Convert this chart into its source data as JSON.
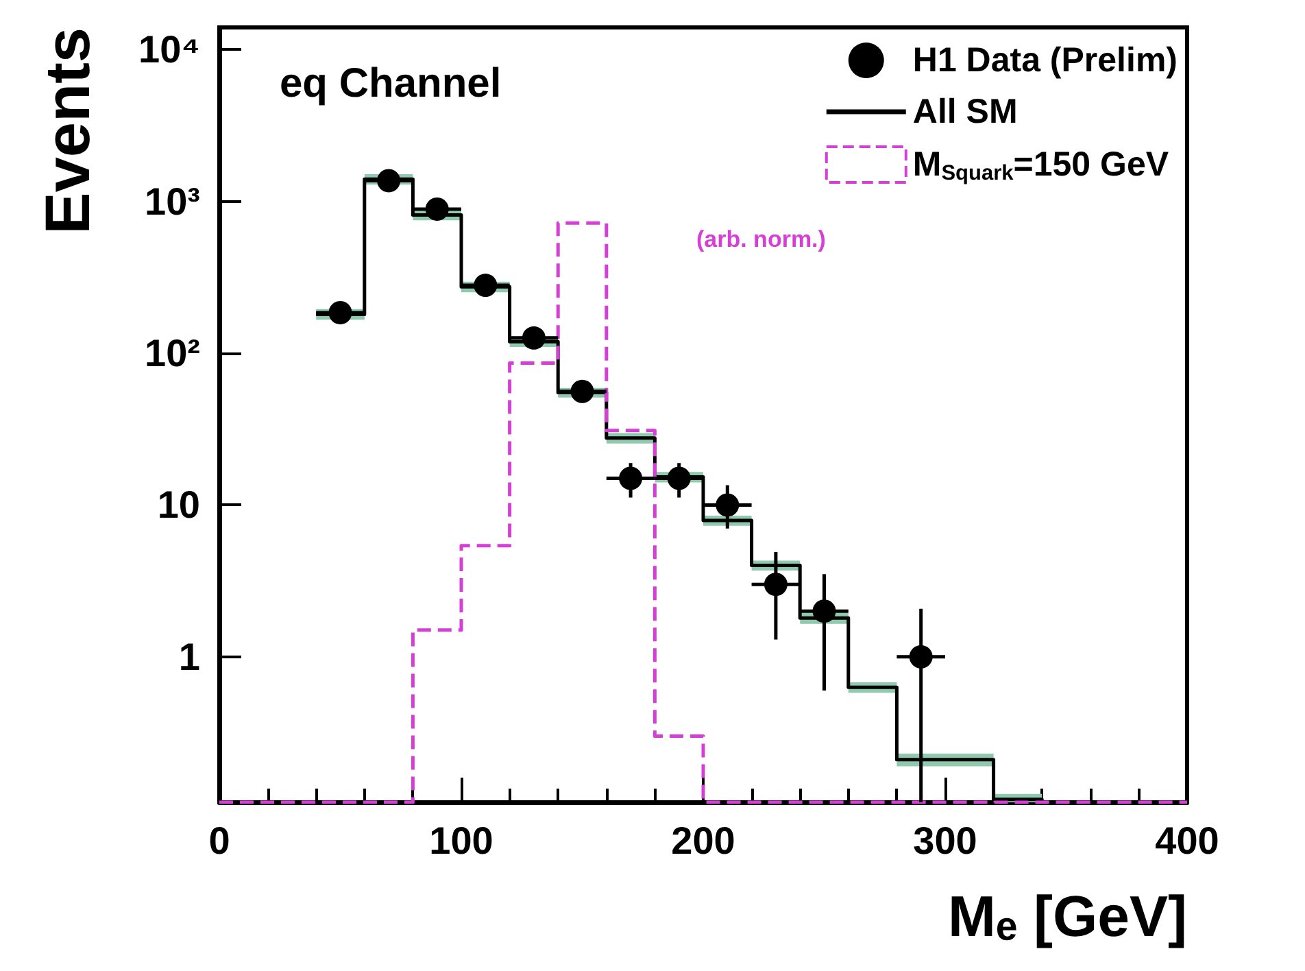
{
  "chart_data": {
    "type": "histogram",
    "xlabel": "Mₑ [GeV]",
    "ylabel": "Events",
    "annotations": [
      "eq Channel",
      "(arb. norm.)"
    ],
    "bins": [
      0,
      20,
      40,
      60,
      80,
      100,
      120,
      140,
      160,
      180,
      200,
      220,
      240,
      260,
      280,
      300,
      320,
      340,
      360,
      380,
      400
    ],
    "series": [
      {
        "name": "H1 Data (Prelim)",
        "type": "scatter",
        "color": "#000000",
        "marker": "circle",
        "x": [
          50,
          70,
          90,
          110,
          130,
          150,
          170,
          190,
          210,
          230,
          250,
          290
        ],
        "values": [
          185,
          1370,
          890,
          280,
          126,
          56,
          15,
          15,
          10,
          3,
          2,
          1
        ],
        "errors": [
          null,
          null,
          null,
          null,
          null,
          null,
          [
            11.2,
            18.9
          ],
          [
            11.2,
            18.9
          ],
          [
            7,
            13.5
          ],
          [
            1.3,
            4.9
          ],
          [
            0.6,
            3.5
          ],
          [
            0.11,
            2.07
          ]
        ],
        "xerrors": [
          10,
          10,
          10,
          10,
          10,
          10,
          10,
          10,
          10,
          10,
          10,
          10
        ]
      },
      {
        "name": "All SM",
        "type": "step",
        "color": "#000000",
        "x": [
          40,
          60,
          80,
          100,
          120,
          140,
          160,
          180,
          200,
          220,
          240,
          260,
          280,
          300,
          320,
          340
        ],
        "values": [
          180,
          1400,
          815,
          274,
          119,
          55,
          27.6,
          15.3,
          7.9,
          4.0,
          1.8,
          0.63,
          0.21,
          0.21,
          0.115,
          0.115
        ],
        "lower": [
          166,
          1290,
          750,
          252,
          110,
          51,
          25.4,
          14.1,
          7.3,
          3.7,
          1.65,
          0.58,
          0.19,
          0.19,
          0.11,
          0.11
        ],
        "upper": [
          195,
          1510,
          880,
          296,
          129,
          59,
          29.8,
          16.5,
          8.5,
          4.3,
          1.95,
          0.68,
          0.23,
          0.23,
          0.125,
          0.125
        ]
      },
      {
        "name": "M$_{Squark}$=150 GeV",
        "color": "#d63fd6",
        "line_style": "dashed",
        "values": [
          null,
          null,
          null,
          null,
          1.5,
          5.4,
          86,
          720,
          31,
          0.3,
          null,
          null,
          null,
          null,
          null,
          null,
          null,
          null,
          null,
          null
        ]
      }
    ],
    "xlim": [
      0,
      400
    ],
    "xticks": [
      0,
      100,
      200,
      300,
      400
    ],
    "log": "y",
    "ylim": [
      0.11,
      14000
    ],
    "yticks": [
      1,
      10,
      {
        "value": 100,
        "label": "10²"
      },
      {
        "value": 1000,
        "label": "10³"
      },
      {
        "value": 10000,
        "label": "10⁴"
      }
    ],
    "grid": false,
    "legend": "top right"
  }
}
